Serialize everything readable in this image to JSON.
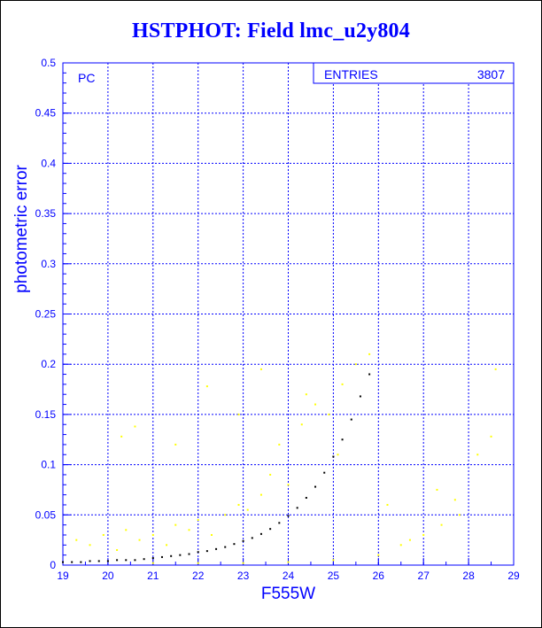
{
  "chart_data": {
    "type": "scatter",
    "title": "HSTPHOT: Field lmc_u2y804",
    "xlabel": "F555W",
    "ylabel": "photometric error",
    "xlim": [
      19,
      29
    ],
    "ylim": [
      0,
      0.5
    ],
    "x_ticks": [
      "19",
      "20",
      "21",
      "22",
      "23",
      "24",
      "25",
      "26",
      "27",
      "28",
      "29"
    ],
    "y_ticks": [
      "0",
      "0.05",
      "0.1",
      "0.15",
      "0.2",
      "0.25",
      "0.3",
      "0.35",
      "0.4",
      "0.45",
      "0.5"
    ],
    "grid": true,
    "corner_label": "PC",
    "stats_box": {
      "label": "ENTRIES",
      "value": "3807"
    },
    "series": [
      {
        "color": "#000000",
        "points": [
          [
            19.0,
            0.003
          ],
          [
            19.2,
            0.003
          ],
          [
            19.4,
            0.003
          ],
          [
            19.6,
            0.004
          ],
          [
            19.8,
            0.004
          ],
          [
            20.0,
            0.004
          ],
          [
            20.2,
            0.005
          ],
          [
            20.4,
            0.005
          ],
          [
            20.6,
            0.005
          ],
          [
            20.8,
            0.006
          ],
          [
            21.0,
            0.007
          ],
          [
            21.2,
            0.008
          ],
          [
            21.4,
            0.009
          ],
          [
            21.6,
            0.01
          ],
          [
            21.8,
            0.011
          ],
          [
            22.0,
            0.013
          ],
          [
            22.2,
            0.014
          ],
          [
            22.4,
            0.016
          ],
          [
            22.6,
            0.018
          ],
          [
            22.8,
            0.021
          ],
          [
            23.0,
            0.024
          ],
          [
            23.2,
            0.027
          ],
          [
            23.4,
            0.031
          ],
          [
            23.6,
            0.036
          ],
          [
            23.8,
            0.042
          ],
          [
            24.0,
            0.049
          ],
          [
            24.2,
            0.057
          ],
          [
            24.4,
            0.067
          ],
          [
            24.6,
            0.078
          ],
          [
            24.8,
            0.092
          ],
          [
            25.0,
            0.108
          ],
          [
            25.2,
            0.125
          ],
          [
            25.4,
            0.145
          ],
          [
            25.6,
            0.168
          ],
          [
            25.8,
            0.19
          ]
        ]
      },
      {
        "color": "#ffff00",
        "points": [
          [
            19.3,
            0.025
          ],
          [
            19.6,
            0.02
          ],
          [
            19.9,
            0.03
          ],
          [
            20.2,
            0.015
          ],
          [
            20.4,
            0.035
          ],
          [
            20.7,
            0.025
          ],
          [
            21.0,
            0.03
          ],
          [
            21.3,
            0.02
          ],
          [
            21.5,
            0.04
          ],
          [
            21.8,
            0.035
          ],
          [
            22.0,
            0.045
          ],
          [
            22.3,
            0.03
          ],
          [
            22.6,
            0.05
          ],
          [
            22.9,
            0.06
          ],
          [
            23.1,
            0.055
          ],
          [
            23.4,
            0.07
          ],
          [
            23.6,
            0.09
          ],
          [
            23.8,
            0.12
          ],
          [
            24.0,
            0.08
          ],
          [
            24.3,
            0.14
          ],
          [
            24.6,
            0.16
          ],
          [
            24.9,
            0.15
          ],
          [
            25.2,
            0.18
          ],
          [
            25.5,
            0.2
          ],
          [
            25.8,
            0.21
          ],
          [
            20.3,
            0.128
          ],
          [
            20.6,
            0.138
          ],
          [
            21.5,
            0.12
          ],
          [
            22.2,
            0.178
          ],
          [
            23.4,
            0.195
          ],
          [
            22.9,
            0.15
          ],
          [
            24.4,
            0.17
          ],
          [
            25.1,
            0.11
          ],
          [
            27.3,
            0.075
          ],
          [
            27.7,
            0.065
          ],
          [
            28.2,
            0.11
          ],
          [
            28.5,
            0.128
          ],
          [
            28.6,
            0.195
          ],
          [
            26.5,
            0.02
          ],
          [
            27.0,
            0.03
          ],
          [
            27.4,
            0.04
          ],
          [
            25.0,
            0.005
          ],
          [
            24.0,
            0.003
          ],
          [
            23.0,
            0.002
          ],
          [
            22.0,
            0.002
          ],
          [
            21.0,
            0.002
          ],
          [
            26.0,
            0.01
          ],
          [
            26.7,
            0.025
          ],
          [
            27.8,
            0.05
          ],
          [
            26.2,
            0.06
          ]
        ]
      }
    ]
  }
}
